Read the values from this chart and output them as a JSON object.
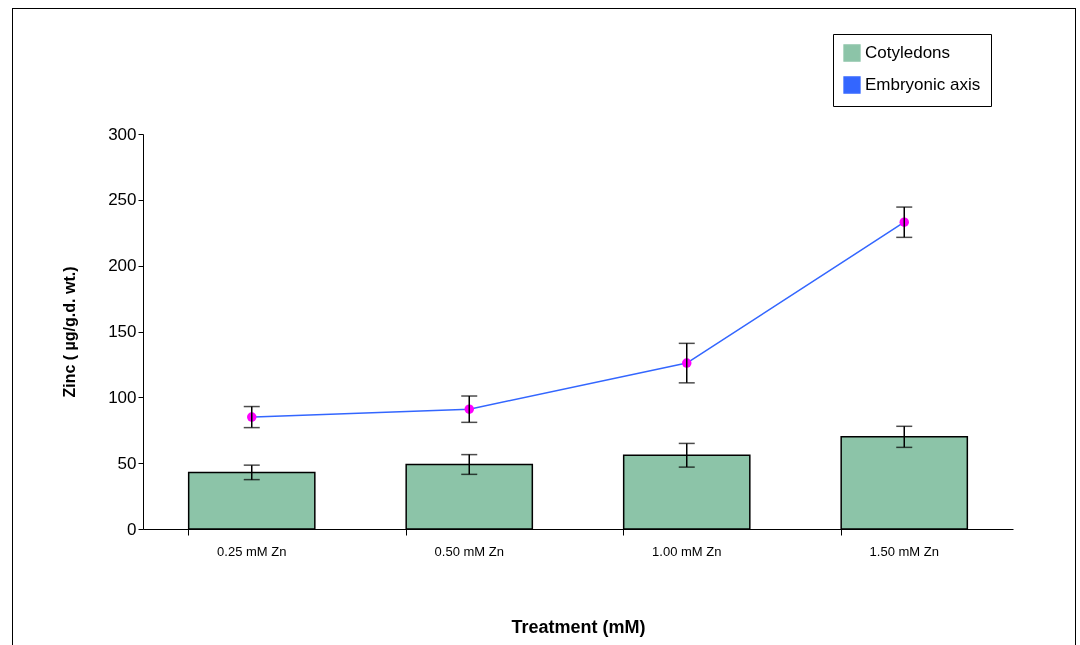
{
  "chart_data": {
    "type": "bar",
    "xlabel": "Treatment (mM)",
    "ylabel": "Zinc ( µg/g.d. wt.)",
    "categories": [
      "0.25 mM Zn",
      "0.50 mM Zn",
      "1.00 mM Zn",
      "1.50 mM Zn"
    ],
    "series": [
      {
        "name": "Cotyledons",
        "color": "#8cc4a8",
        "values": [
          43,
          49,
          56,
          70
        ],
        "errors": [
          5.5,
          7.5,
          9,
          8
        ]
      },
      {
        "name": "Embryonic axis",
        "type": "line",
        "color": "#3366ff",
        "colors": [
          "#ff00ff",
          "#ff00ff",
          "#ff00ff",
          "#ff00ff"
        ],
        "marker": "circle",
        "values": [
          85,
          91,
          126,
          233
        ],
        "errors": [
          8,
          10,
          15,
          11.5
        ]
      }
    ],
    "ylim": [
      0,
      300
    ],
    "yticks": [
      0,
      50,
      100,
      150,
      200,
      250,
      300
    ],
    "grid": false,
    "legend": "top right"
  }
}
